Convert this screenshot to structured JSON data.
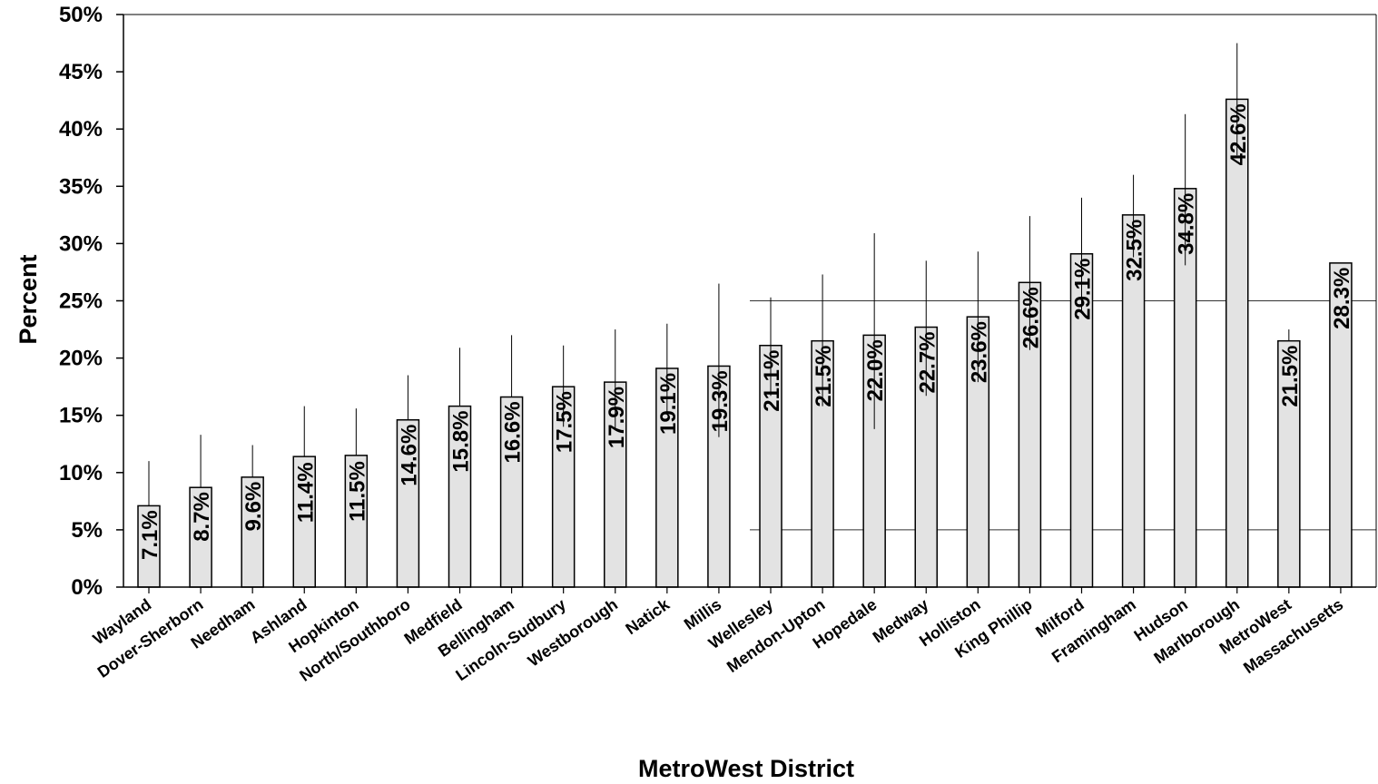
{
  "chart_data": {
    "type": "bar",
    "title": "",
    "xlabel": "MetroWest District",
    "ylabel": "Percent",
    "ylim": [
      0,
      50
    ],
    "yticks": [
      "0%",
      "5%",
      "10%",
      "15%",
      "20%",
      "25%",
      "30%",
      "35%",
      "40%",
      "45%",
      "50%"
    ],
    "categories": [
      "Wayland",
      "Dover-Sherborn",
      "Needham",
      "Ashland",
      "Hopkinton",
      "North/Southboro",
      "Medfield",
      "Bellingham",
      "Lincoln-Sudbury",
      "Westborough",
      "Natick",
      "Millis",
      "Wellesley",
      "Mendon-Upton",
      "Hopedale",
      "Medway",
      "Holliston",
      "King Phillip",
      "Milford",
      "Framingham",
      "Hudson",
      "Marlborough",
      "MetroWest",
      "Massachusetts"
    ],
    "values": [
      7.1,
      8.7,
      9.6,
      11.4,
      11.5,
      14.6,
      15.8,
      16.6,
      17.5,
      17.9,
      19.1,
      19.3,
      21.1,
      21.5,
      22.0,
      22.7,
      23.6,
      26.6,
      29.1,
      32.5,
      34.8,
      42.6,
      21.5,
      28.3
    ],
    "data_labels": [
      "7.1%",
      "8.7%",
      "9.6%",
      "11.4%",
      "11.5%",
      "14.6%",
      "15.8%",
      "16.6%",
      "17.5%",
      "17.9%",
      "19.1%",
      "19.3%",
      "21.1%",
      "21.5%",
      "22.0%",
      "22.7%",
      "23.6%",
      "26.6%",
      "29.1%",
      "32.5%",
      "34.8%",
      "42.6%",
      "21.5%",
      "28.3%"
    ],
    "error_upper": [
      11.0,
      13.3,
      12.4,
      15.8,
      15.6,
      18.5,
      20.9,
      22.0,
      21.1,
      22.5,
      23.0,
      26.5,
      25.3,
      27.3,
      30.9,
      28.5,
      29.3,
      32.4,
      34.0,
      36.0,
      41.3,
      47.5,
      22.5,
      null
    ],
    "error_lower": [
      null,
      null,
      null,
      null,
      null,
      null,
      null,
      null,
      14.0,
      13.9,
      15.1,
      13.1,
      16.7,
      15.8,
      13.8,
      16.7,
      17.9,
      20.7,
      24.0,
      28.8,
      28.1,
      37.7,
      null,
      null
    ],
    "reference_lines": [
      25,
      5
    ],
    "grid": false,
    "legend": "none",
    "bar_color": "#e3e3e3"
  }
}
